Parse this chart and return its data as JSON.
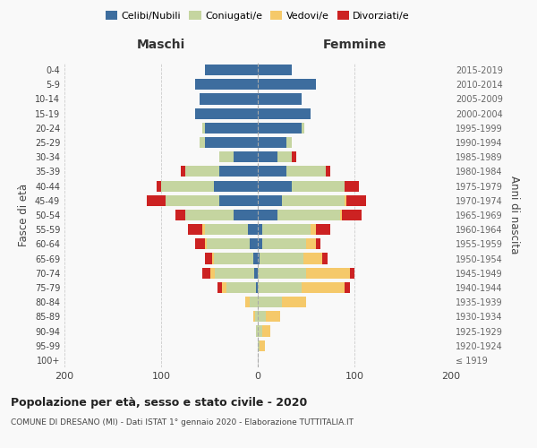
{
  "age_groups": [
    "100+",
    "95-99",
    "90-94",
    "85-89",
    "80-84",
    "75-79",
    "70-74",
    "65-69",
    "60-64",
    "55-59",
    "50-54",
    "45-49",
    "40-44",
    "35-39",
    "30-34",
    "25-29",
    "20-24",
    "15-19",
    "10-14",
    "5-9",
    "0-4"
  ],
  "birth_years": [
    "≤ 1919",
    "1920-1924",
    "1925-1929",
    "1930-1934",
    "1935-1939",
    "1940-1944",
    "1945-1949",
    "1950-1954",
    "1955-1959",
    "1960-1964",
    "1965-1969",
    "1970-1974",
    "1975-1979",
    "1980-1984",
    "1985-1989",
    "1990-1994",
    "1995-1999",
    "2000-2004",
    "2005-2009",
    "2010-2014",
    "2015-2019"
  ],
  "colors": {
    "celibi": "#3d6d9e",
    "coniugati": "#c5d5a0",
    "vedovi": "#f5c96a",
    "divorziati": "#cc2222"
  },
  "maschi": {
    "celibi": [
      0,
      0,
      0,
      0,
      0,
      2,
      4,
      5,
      8,
      10,
      25,
      40,
      45,
      40,
      25,
      55,
      55,
      65,
      60,
      65,
      55
    ],
    "coniugati": [
      0,
      0,
      2,
      3,
      8,
      30,
      40,
      40,
      45,
      45,
      50,
      55,
      55,
      35,
      15,
      5,
      2,
      0,
      0,
      0,
      0
    ],
    "vedovi": [
      0,
      0,
      0,
      2,
      5,
      5,
      5,
      2,
      2,
      2,
      0,
      0,
      0,
      0,
      0,
      0,
      0,
      0,
      0,
      0,
      0
    ],
    "divorziati": [
      0,
      0,
      0,
      0,
      0,
      5,
      8,
      8,
      10,
      15,
      10,
      20,
      5,
      5,
      0,
      0,
      0,
      0,
      0,
      0,
      0
    ]
  },
  "femmine": {
    "celibi": [
      0,
      0,
      0,
      0,
      0,
      0,
      0,
      2,
      5,
      5,
      20,
      25,
      35,
      30,
      20,
      30,
      45,
      55,
      45,
      60,
      35
    ],
    "coniugati": [
      0,
      2,
      5,
      8,
      25,
      45,
      50,
      45,
      45,
      50,
      65,
      65,
      55,
      40,
      15,
      5,
      3,
      0,
      0,
      0,
      0
    ],
    "vedovi": [
      0,
      5,
      8,
      15,
      25,
      45,
      45,
      20,
      10,
      5,
      2,
      2,
      0,
      0,
      0,
      0,
      0,
      0,
      0,
      0,
      0
    ],
    "divorziati": [
      0,
      0,
      0,
      0,
      0,
      5,
      5,
      5,
      5,
      15,
      20,
      20,
      15,
      5,
      5,
      0,
      0,
      0,
      0,
      0,
      0
    ]
  },
  "title": "Popolazione per età, sesso e stato civile - 2020",
  "subtitle": "COMUNE DI DRESANO (MI) - Dati ISTAT 1° gennaio 2020 - Elaborazione TUTTITALIA.IT",
  "xlabel_left": "Maschi",
  "xlabel_right": "Femmine",
  "ylabel_left": "Fasce di età",
  "ylabel_right": "Anni di nascita",
  "legend_labels": [
    "Celibi/Nubili",
    "Coniugati/e",
    "Vedovi/e",
    "Divorziati/e"
  ],
  "xlim": 200,
  "background": "#f9f9f9"
}
